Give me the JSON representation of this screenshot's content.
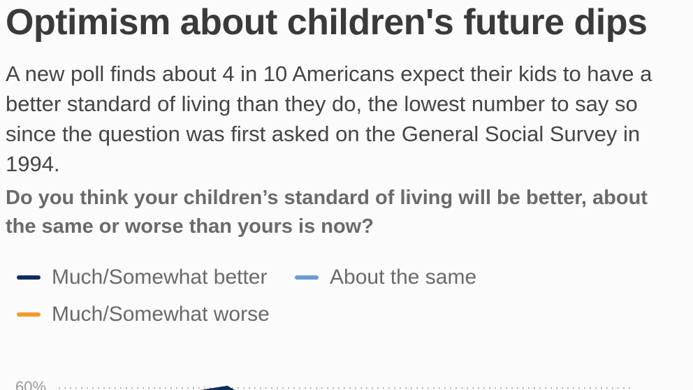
{
  "header": {
    "title": "Optimism about children's future dips",
    "subtitle": "A new poll finds about 4 in 10 Americans expect their kids to have a better standard of living than they do, the lowest number to say so since the question was first asked on the General Social Survey in 1994.",
    "question": "Do you think your children’s standard of living will be better, about the same or worse than yours is now?"
  },
  "legend": [
    {
      "label": "Much/Somewhat better",
      "color": "#0f2c5c"
    },
    {
      "label": "About the same",
      "color": "#6a9bd4"
    },
    {
      "label": "Much/Somewhat worse",
      "color": "#f39a2b"
    }
  ],
  "chart_data": {
    "type": "line",
    "title": "Optimism about children's future dips",
    "xlabel": "",
    "ylabel": "",
    "yticks": [
      "60%"
    ],
    "ylim": [
      0,
      60
    ],
    "grid": true,
    "series": [
      {
        "name": "Much/Somewhat better",
        "color": "#0f2c5c",
        "visible_segment_y": [
          58,
          60,
          58
        ]
      }
    ]
  }
}
